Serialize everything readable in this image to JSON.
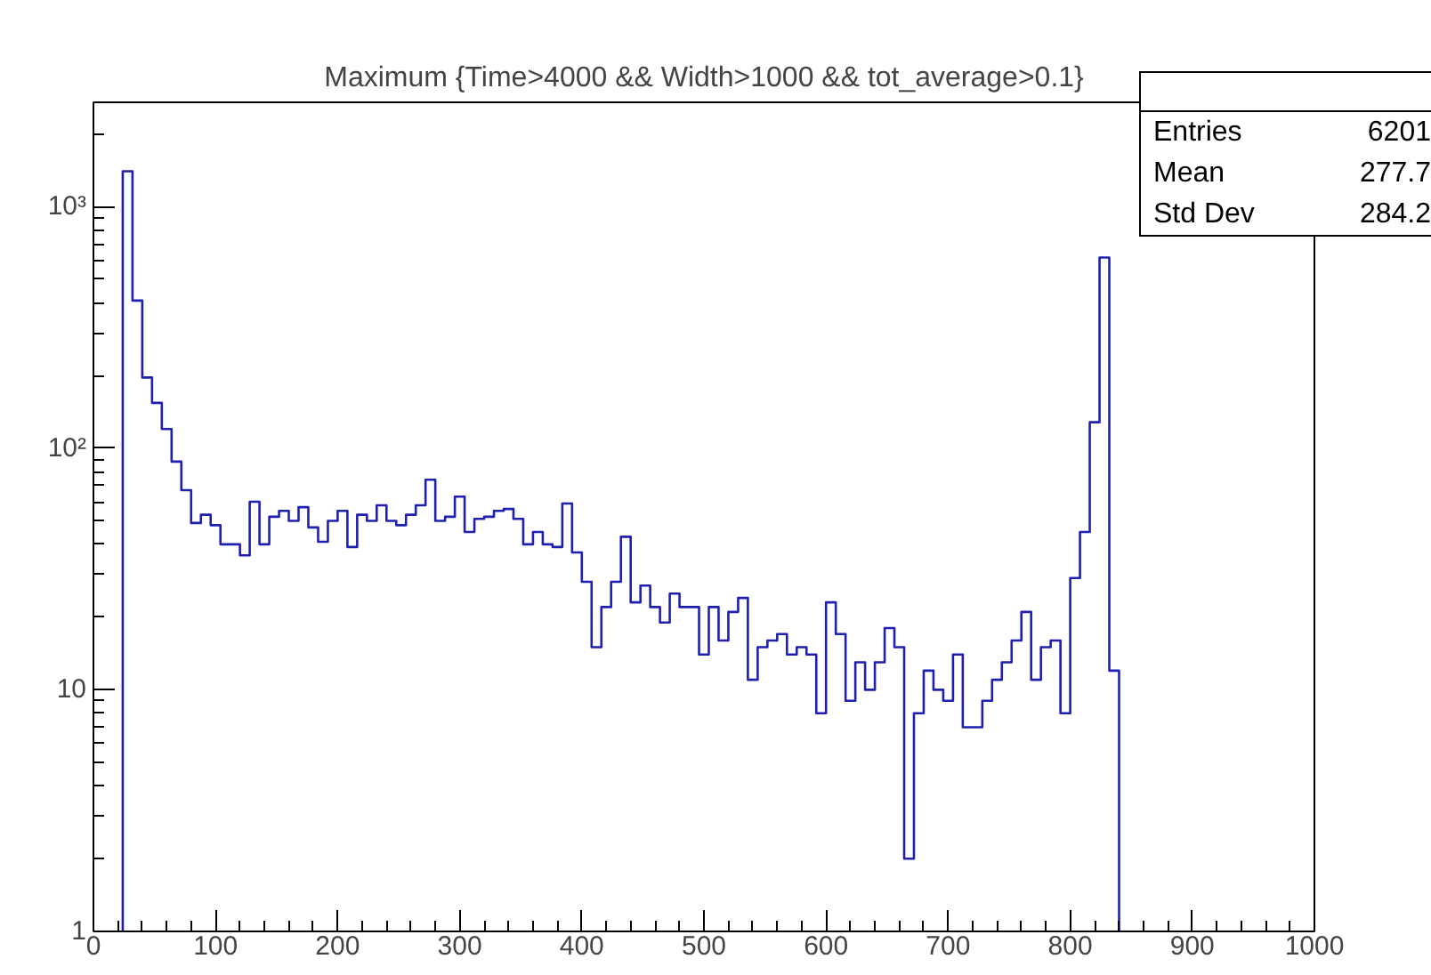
{
  "chart_data": {
    "type": "histogram",
    "title": "Maximum {Time>4000 && Width>1000 && tot_average>0.1}",
    "bins": [
      24,
      32,
      40,
      48,
      56,
      64,
      72,
      80,
      88,
      96,
      104,
      112,
      120,
      128,
      136,
      144,
      152,
      160,
      168,
      176,
      184,
      192,
      200,
      208,
      216,
      224,
      232,
      240,
      248,
      256,
      264,
      272,
      280,
      288,
      296,
      304,
      312,
      320,
      328,
      336,
      344,
      352,
      360,
      368,
      376,
      384,
      392,
      400,
      408,
      416,
      424,
      432,
      440,
      448,
      456,
      464,
      472,
      480,
      488,
      496,
      504,
      512,
      520,
      528,
      536,
      544,
      552,
      560,
      568,
      576,
      584,
      592,
      600,
      608,
      616,
      624,
      632,
      640,
      648,
      656,
      664,
      672,
      680,
      688,
      696,
      704,
      712,
      720,
      728,
      736,
      744,
      752,
      760,
      768,
      776,
      784,
      792,
      800,
      808,
      816,
      824,
      832,
      840
    ],
    "values": [
      1400,
      408,
      196,
      154,
      120,
      88,
      67,
      49,
      53,
      48,
      40,
      40,
      36,
      60,
      40,
      52,
      55,
      50,
      57,
      47,
      41,
      50,
      55,
      39,
      53,
      50,
      58,
      50,
      48,
      53,
      58,
      74,
      50,
      52,
      63,
      45,
      51,
      52,
      55,
      56,
      51,
      40,
      45,
      40,
      39,
      59,
      37,
      28,
      15,
      22,
      28,
      43,
      23,
      27,
      22,
      19,
      25,
      22,
      22,
      14,
      22,
      16,
      21,
      24,
      11,
      15,
      16,
      17,
      14,
      15,
      14,
      8,
      23,
      17,
      9,
      13,
      10,
      13,
      18,
      15,
      2,
      8,
      12,
      10,
      9,
      14,
      7,
      7,
      9,
      11,
      13,
      16,
      21,
      11,
      15,
      16,
      8,
      29,
      45,
      128,
      615,
      12
    ],
    "color": "#2020b0",
    "log": true,
    "grid": false,
    "xlim": [
      0,
      1000
    ],
    "ylim": [
      1,
      2700
    ],
    "xticks": [
      0,
      100,
      200,
      300,
      400,
      500,
      600,
      700,
      800,
      900,
      1000
    ],
    "yticks": [
      1,
      10,
      {
        "value": 100,
        "label": "10²"
      },
      {
        "value": 1000,
        "label": "10³"
      }
    ],
    "annotations": [
      "Entries",
      "6201",
      "Mean",
      "277.7",
      "Std Dev",
      "284.2"
    ]
  }
}
